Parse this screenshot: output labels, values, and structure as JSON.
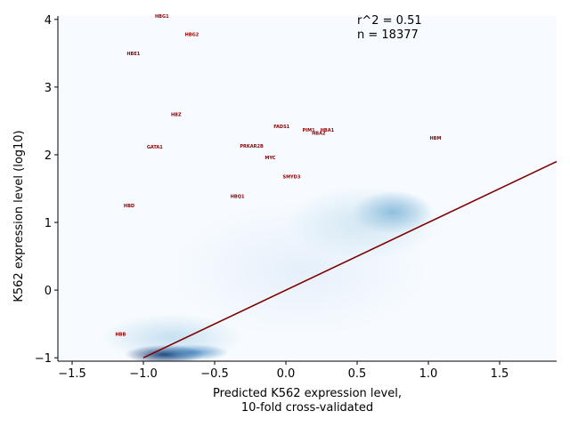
{
  "chart_data": {
    "type": "scatter",
    "subtype": "density-with-labels",
    "xlabel_line1": "Predicted K562 expression level,",
    "xlabel_line2": "10-fold cross-validated",
    "ylabel": "K562 expression level (log10)",
    "xlim": [
      -1.6,
      1.9
    ],
    "ylim": [
      -1.05,
      4.05
    ],
    "x_ticks": [
      -1.5,
      -1.0,
      -0.5,
      0.0,
      0.5,
      1.0,
      1.5
    ],
    "x_tick_labels": [
      "−1.5",
      "−1.0",
      "−0.5",
      "0.0",
      "0.5",
      "1.0",
      "1.5"
    ],
    "y_ticks": [
      -1,
      0,
      1,
      2,
      3,
      4
    ],
    "y_tick_labels": [
      "−1",
      "0",
      "1",
      "2",
      "3",
      "4"
    ],
    "grid": false,
    "stats": {
      "r2_text": "r^2 = 0.51",
      "n_text": "n = 18377"
    },
    "fit_line": {
      "x": [
        -1.0,
        1.9
      ],
      "y": [
        -1.0,
        1.9
      ],
      "color": "#7f0000"
    },
    "density_blobs": [
      {
        "cx": -0.85,
        "cy": -0.95,
        "sx": 0.28,
        "sy": 0.14,
        "color": "#08306b",
        "opacity": 0.95
      },
      {
        "cx": -0.65,
        "cy": -0.92,
        "sx": 0.25,
        "sy": 0.12,
        "color": "#2171b5",
        "opacity": 0.7
      },
      {
        "cx": -0.8,
        "cy": -0.7,
        "sx": 0.5,
        "sy": 0.35,
        "color": "#6baed6",
        "opacity": 0.35
      },
      {
        "cx": 0.75,
        "cy": 1.15,
        "sx": 0.28,
        "sy": 0.32,
        "color": "#4292c6",
        "opacity": 0.6
      },
      {
        "cx": 0.55,
        "cy": 1.0,
        "sx": 0.55,
        "sy": 0.55,
        "color": "#9ecae1",
        "opacity": 0.4
      },
      {
        "cx": 0.1,
        "cy": 0.3,
        "sx": 0.9,
        "sy": 1.0,
        "color": "#c6dbef",
        "opacity": 0.35
      }
    ],
    "labeled_points": [
      {
        "label": "HBG1",
        "x": -0.87,
        "y": 4.05
      },
      {
        "label": "HBG2",
        "x": -0.66,
        "y": 3.78
      },
      {
        "label": "HBE1",
        "x": -1.07,
        "y": 3.5
      },
      {
        "label": "HBZ",
        "x": -0.77,
        "y": 2.6
      },
      {
        "label": "FADS1",
        "x": -0.03,
        "y": 2.42
      },
      {
        "label": "PIM1",
        "x": 0.16,
        "y": 2.37
      },
      {
        "label": "HBA1",
        "x": 0.29,
        "y": 2.37
      },
      {
        "label": "HBA2",
        "x": 0.23,
        "y": 2.32
      },
      {
        "label": "HBM",
        "x": 1.05,
        "y": 2.25
      },
      {
        "label": "GATA1",
        "x": -0.92,
        "y": 2.12
      },
      {
        "label": "PRKAR2B",
        "x": -0.24,
        "y": 2.13
      },
      {
        "label": "MYC",
        "x": -0.11,
        "y": 1.96
      },
      {
        "label": "SMYD3",
        "x": 0.04,
        "y": 1.68
      },
      {
        "label": "HBQ1",
        "x": -0.34,
        "y": 1.39
      },
      {
        "label": "HBD",
        "x": -1.1,
        "y": 1.25
      },
      {
        "label": "HBB",
        "x": -1.16,
        "y": -0.65
      }
    ],
    "label_color": "#8b0000"
  }
}
